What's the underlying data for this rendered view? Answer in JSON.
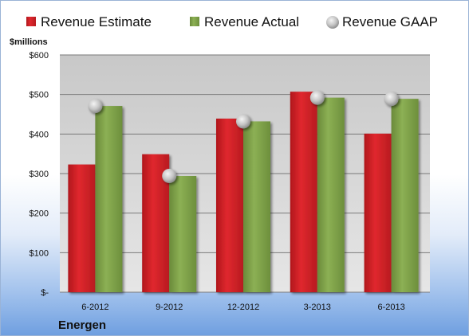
{
  "chart_data": {
    "type": "bar",
    "ylabel": "$millions",
    "company": "Energen",
    "categories": [
      "6-2012",
      "9-2012",
      "12-2012",
      "3-2013",
      "6-2013"
    ],
    "ylim": [
      0,
      600
    ],
    "yticks": [
      0,
      100,
      200,
      300,
      400,
      500,
      600
    ],
    "ytick_labels": [
      "$-",
      "$100",
      "$200",
      "$300",
      "$400",
      "$500",
      "$600"
    ],
    "grid": true,
    "legend_position": "top",
    "series": [
      {
        "name": "Revenue Estimate",
        "kind": "bar",
        "color": "#d42127",
        "values": [
          323,
          349,
          439,
          507,
          401
        ]
      },
      {
        "name": "Revenue Actual",
        "kind": "bar",
        "color": "#7fa14a",
        "values": [
          471,
          294,
          432,
          492,
          489
        ]
      },
      {
        "name": "Revenue GAAP",
        "kind": "marker",
        "color": "#c8c8c8",
        "values": [
          471,
          294,
          432,
          492,
          489
        ]
      }
    ]
  }
}
